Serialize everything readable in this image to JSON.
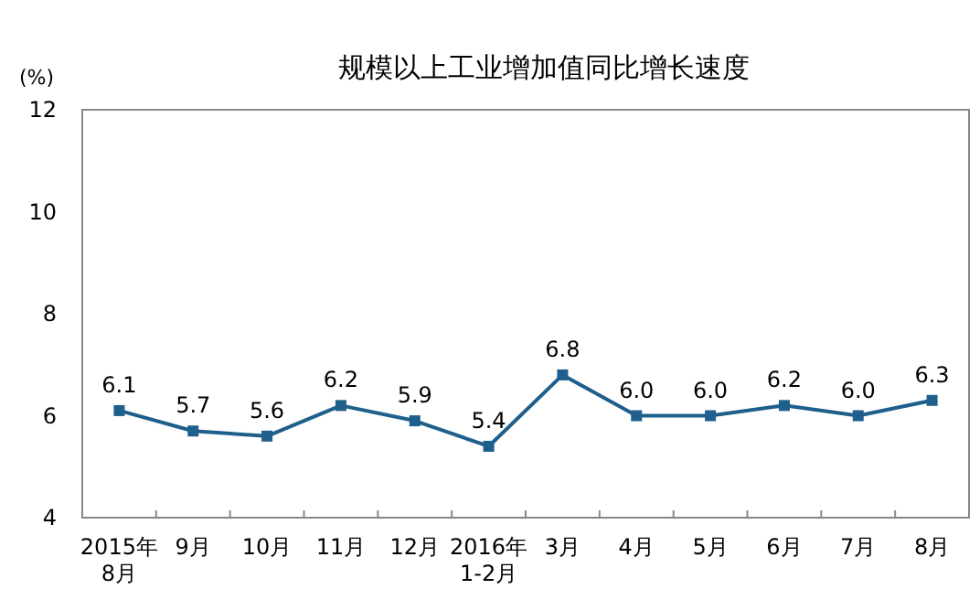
{
  "chart_data": {
    "type": "line",
    "title": "规模以上工业增加值同比增长速度",
    "ylabel": "(%)",
    "categories": [
      "2015年\n8月",
      "9月",
      "10月",
      "11月",
      "12月",
      "2016年\n1-2月",
      "3月",
      "4月",
      "5月",
      "6月",
      "7月",
      "8月"
    ],
    "series": [
      {
        "color": "#1f5f8c",
        "values": [
          6.1,
          5.7,
          5.6,
          6.2,
          5.9,
          5.4,
          6.8,
          6.0,
          6.0,
          6.2,
          6.0,
          6.3
        ]
      }
    ],
    "ylim": [
      4,
      12
    ],
    "yticks": [
      {
        "value": 4,
        "label": "4"
      },
      {
        "value": 6,
        "label": "6"
      },
      {
        "value": 8,
        "label": "8"
      },
      {
        "value": 10,
        "label": "10"
      },
      {
        "value": 12,
        "label": "12"
      }
    ],
    "value_labels": [
      "6.1",
      "5.7",
      "5.6",
      "6.2",
      "5.9",
      "5.4",
      "6.8",
      "6.0",
      "6.0",
      "6.2",
      "6.0",
      "6.3"
    ],
    "marker": "square",
    "grid": false
  }
}
